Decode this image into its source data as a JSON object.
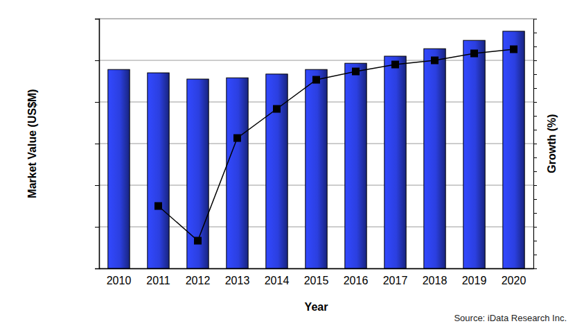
{
  "chart_data": {
    "type": "bar",
    "x_label": "Year",
    "y_label": "Market Value (US$M)",
    "y2_label": "Growth (%)",
    "source": "Source: iData Research Inc.",
    "categories": [
      "2010",
      "2011",
      "2012",
      "2013",
      "2014",
      "2015",
      "2016",
      "2017",
      "2018",
      "2019",
      "2020"
    ],
    "series": [
      {
        "type": "bar",
        "color": "#2b3fe0",
        "values": [
          478,
          470,
          455,
          458,
          467,
          478,
          493,
          510,
          528,
          548,
          570
        ]
      },
      {
        "type": "line",
        "axis": "y2",
        "color": "#000000",
        "marker": "square",
        "values": [
          null,
          -1.5,
          -4.0,
          3.4,
          5.5,
          7.6,
          8.2,
          8.7,
          9.0,
          9.5,
          9.8
        ]
      }
    ],
    "ylim": [
      0,
      600
    ],
    "yticks": [
      0,
      100,
      200,
      300,
      400,
      500,
      600
    ],
    "y2lim": [
      -6,
      12
    ],
    "y2ticks": [
      -6,
      -5,
      -4,
      -3,
      -2,
      -1,
      0,
      1,
      2,
      3,
      4,
      5,
      6,
      7,
      8,
      9,
      10,
      11,
      12
    ],
    "grid": true,
    "tick_labels": "x"
  }
}
